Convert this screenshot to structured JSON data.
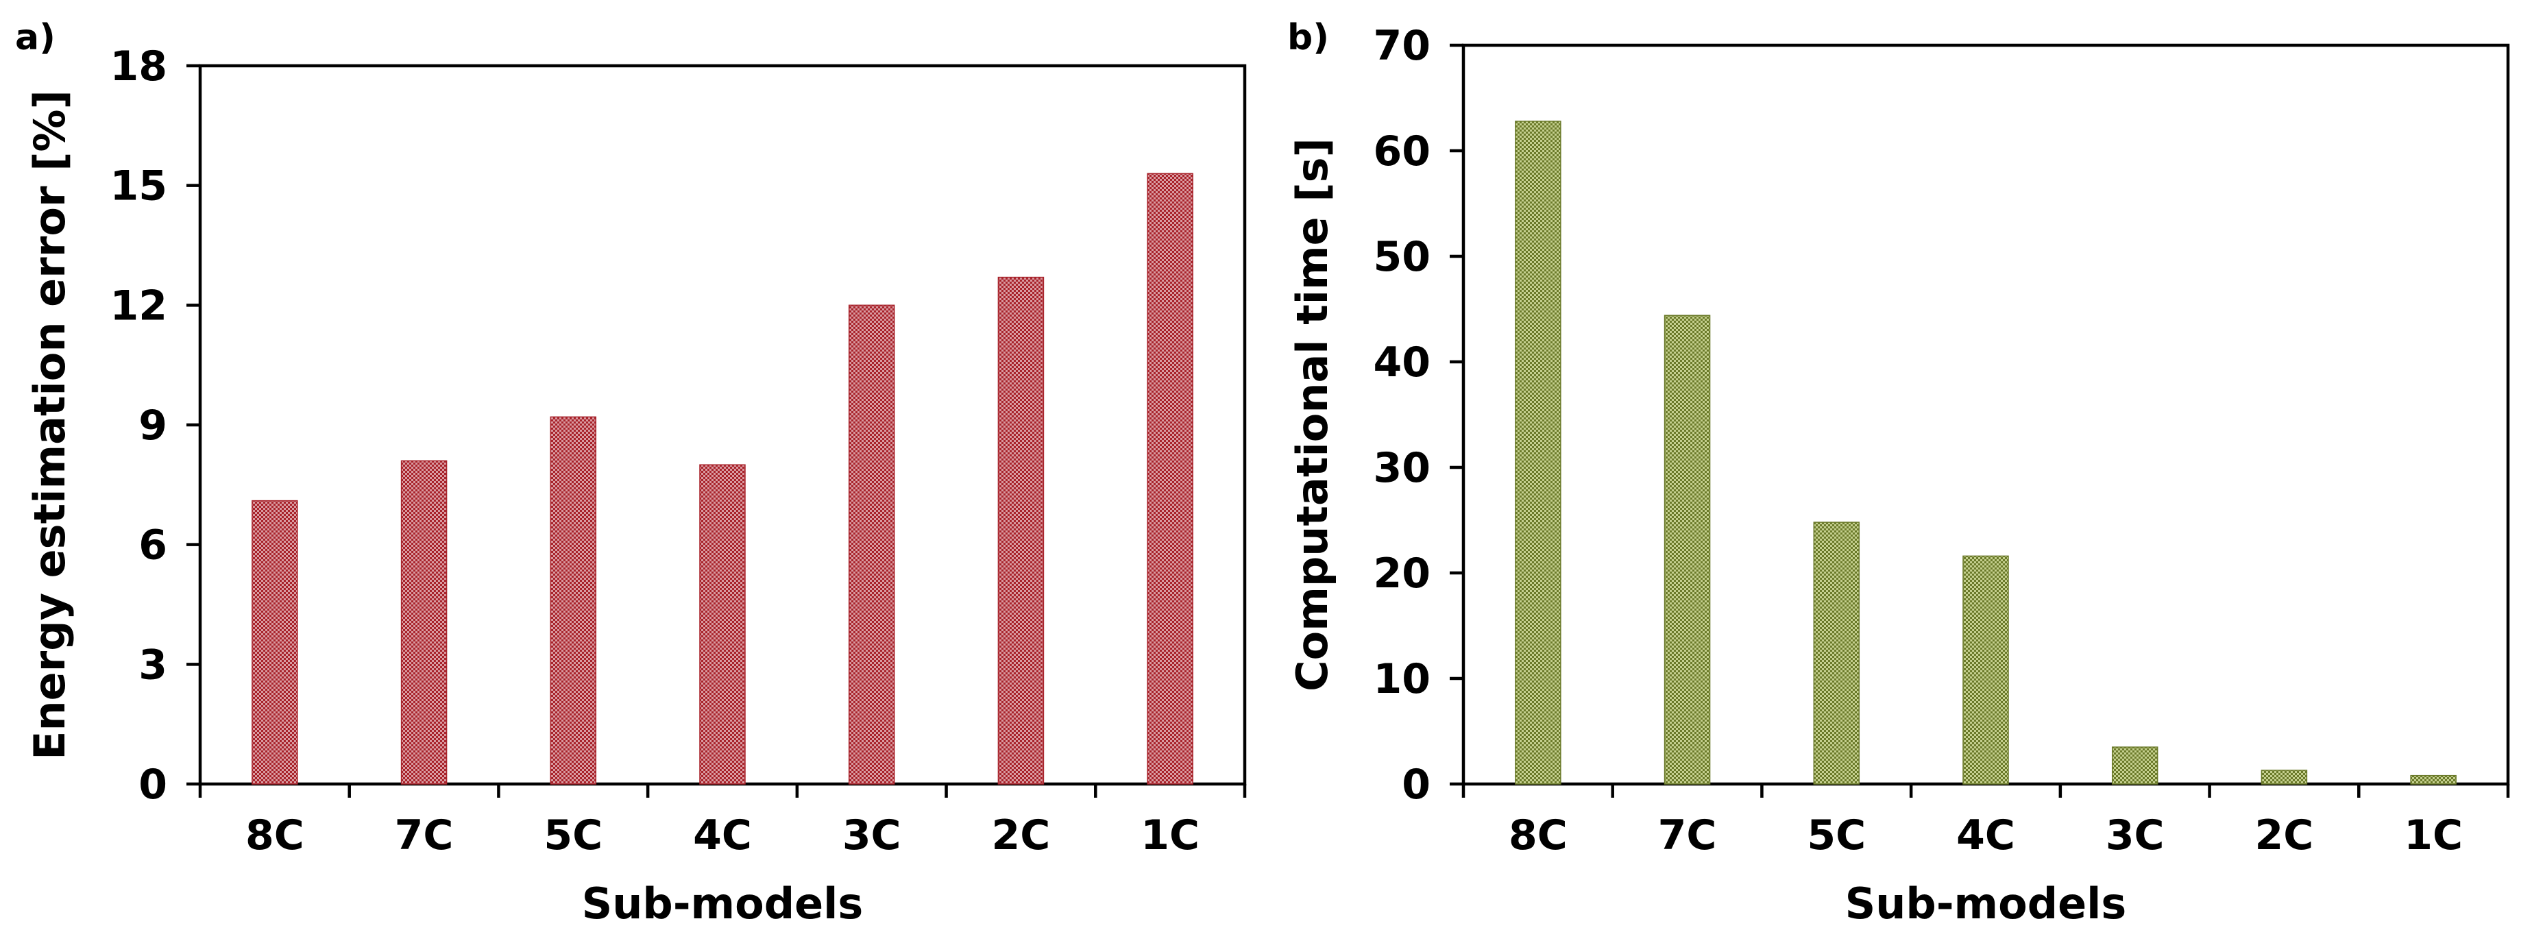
{
  "chart_data": [
    {
      "type": "bar",
      "panel": "a)",
      "title": "",
      "categories": [
        "8C",
        "7C",
        "5C",
        "4C",
        "3C",
        "2C",
        "1C"
      ],
      "values": [
        7.1,
        8.1,
        9.2,
        8.0,
        12.0,
        12.7,
        15.3
      ],
      "xlabel": "Sub-models",
      "ylabel": "Energy estimation error [%]",
      "ylim": [
        0,
        18
      ],
      "yticks": [
        0,
        3,
        6,
        9,
        12,
        15,
        18
      ],
      "grid": false,
      "legend": "none",
      "bar_color": "#a8232b",
      "bar_light": "#d99aa0"
    },
    {
      "type": "bar",
      "panel": "b)",
      "title": "",
      "categories": [
        "8C",
        "7C",
        "5C",
        "4C",
        "3C",
        "2C",
        "1C"
      ],
      "values": [
        62.8,
        44.4,
        24.8,
        21.6,
        3.5,
        1.3,
        0.8
      ],
      "xlabel": "Sub-models",
      "ylabel": "Computational time [s]",
      "ylim": [
        0,
        70
      ],
      "yticks": [
        0,
        10,
        20,
        30,
        40,
        50,
        60,
        70
      ],
      "grid": false,
      "legend": "none",
      "bar_color": "#6b7a2a",
      "bar_light": "#c4cf8e"
    }
  ]
}
